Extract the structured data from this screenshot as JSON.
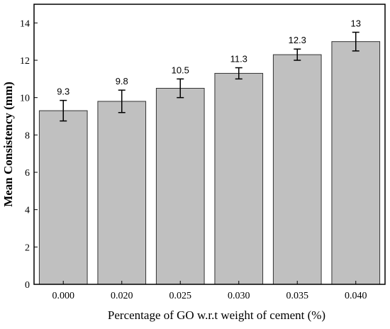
{
  "chart_data": {
    "type": "bar",
    "xlabel": "Percentage of GO w.r.t weight of cement (%)",
    "ylabel": "Mean Consistency (mm)",
    "categories": [
      "0.000",
      "0.020",
      "0.025",
      "0.030",
      "0.035",
      "0.040"
    ],
    "values": [
      9.3,
      9.8,
      10.5,
      11.3,
      12.3,
      13
    ],
    "value_labels": [
      "9.3",
      "9.8",
      "10.5",
      "11.3",
      "12.3",
      "13"
    ],
    "error": [
      0.55,
      0.6,
      0.5,
      0.3,
      0.3,
      0.5
    ],
    "ylim": [
      0,
      15
    ],
    "yticks": [
      0,
      2,
      4,
      6,
      8,
      10,
      12,
      14
    ],
    "ytick_labels": [
      "0",
      "2",
      "4",
      "6",
      "8",
      "10",
      "12",
      "14"
    ],
    "grid": false,
    "bar_color": "#c0c0c0",
    "bar_edge_color": "#333333"
  }
}
